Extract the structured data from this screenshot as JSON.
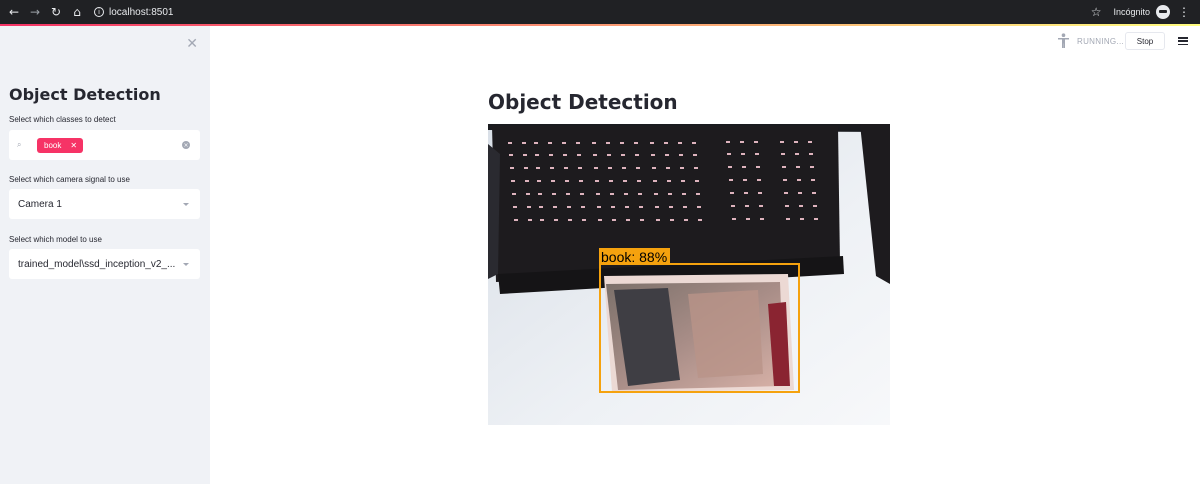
{
  "browser": {
    "url": "localhost:8501",
    "incognito_label": "Incógnito"
  },
  "sidebar": {
    "title": "Object Detection",
    "classes_label": "Select which classes to detect",
    "selected_classes": [
      "book"
    ],
    "camera_label": "Select which camera signal to use",
    "camera_value": "Camera 1",
    "model_label": "Select which model to use",
    "model_value": "trained_model\\ssd_inception_v2_..."
  },
  "status": {
    "running_text": "RUNNING...",
    "stop_label": "Stop"
  },
  "main": {
    "title": "Object Detection",
    "detection": {
      "label": "book: 88%",
      "box_color": "#f5a20e"
    }
  },
  "colors": {
    "accent": "#f63366",
    "sidebar_bg": "#f0f2f6",
    "text": "#262730"
  }
}
